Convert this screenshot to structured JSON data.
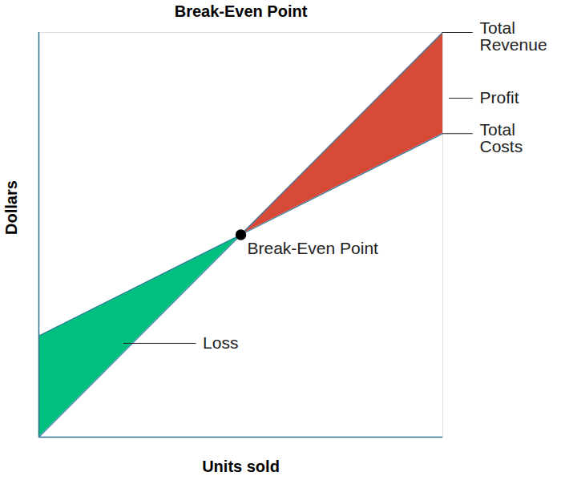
{
  "chart_data": {
    "type": "line",
    "title": "Break-Even Point",
    "x_label": "Units sold",
    "y_label": "Dollars",
    "x": [
      0,
      5,
      10
    ],
    "xlim": [
      0,
      10
    ],
    "ylim": [
      0,
      10
    ],
    "xticks": [],
    "yticks": [],
    "tick_labels": false,
    "grid": false,
    "series": [
      {
        "name": "Total\nRevenue",
        "color": "#3b7ea1",
        "values": [
          0,
          5,
          10
        ]
      },
      {
        "name": "Total\nCosts",
        "color": "#3b7ea1",
        "values": [
          2.5,
          5,
          7.5
        ]
      }
    ],
    "regions": [
      {
        "label": "Loss",
        "color": "#00c07f"
      },
      {
        "label": "Profit",
        "color": "#d84a38"
      }
    ],
    "break_even": {
      "label": "Break-Even Point",
      "x": 5,
      "y": 5
    }
  }
}
